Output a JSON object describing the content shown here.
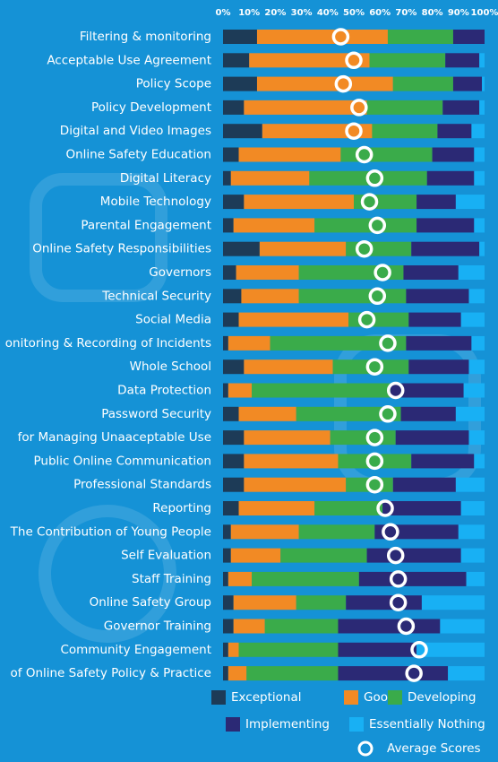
{
  "chart_data": {
    "type": "stacked-barh",
    "categories": [
      "Filtering & monitoring",
      "Acceptable Use Agreement",
      "Policy Scope",
      "Policy Development",
      "Digital and Video Images",
      "Online Safety Education",
      "Digital Literacy",
      "Mobile Technology",
      "Parental Engagement",
      "Online Safety Responsibilities",
      "Governors",
      "Technical Security",
      "Social Media",
      "onitoring & Recording of Incidents",
      "Whole School",
      "Data Protection",
      "Password Security",
      "for Managing Unaaceptable Use",
      "Public Online Communication",
      "Professional Standards",
      "Reporting",
      "The Contribution of Young People",
      "Self Evaluation",
      "Staff Training",
      "Online Safety Group",
      "Governor Training",
      "Community Engagement",
      "of Online Safety Policy & Practice"
    ],
    "series": [
      {
        "name": "Exceptional",
        "color": "#1d3b57",
        "values": [
          13,
          10,
          13,
          8,
          15,
          6,
          3,
          8,
          4,
          14,
          5,
          7,
          6,
          2,
          8,
          2,
          6,
          8,
          8,
          8,
          6,
          3,
          3,
          2,
          4,
          4,
          2,
          2
        ]
      },
      {
        "name": "Good",
        "color": "#f28a24",
        "values": [
          50,
          46,
          52,
          47,
          42,
          39,
          30,
          42,
          31,
          33,
          24,
          22,
          42,
          16,
          34,
          9,
          22,
          33,
          36,
          39,
          29,
          26,
          19,
          9,
          24,
          12,
          4,
          7
        ]
      },
      {
        "name": "Developing",
        "color": "#3aab4a",
        "values": [
          25,
          29,
          23,
          29,
          25,
          35,
          45,
          24,
          39,
          25,
          40,
          41,
          23,
          52,
          29,
          53,
          40,
          25,
          28,
          18,
          26,
          29,
          33,
          41,
          19,
          28,
          38,
          35
        ]
      },
      {
        "name": "Implementing",
        "color": "#2b2975",
        "values": [
          12,
          13,
          11,
          14,
          13,
          16,
          18,
          15,
          22,
          26,
          21,
          24,
          20,
          25,
          23,
          28,
          21,
          28,
          24,
          24,
          30,
          32,
          36,
          41,
          29,
          39,
          30,
          42
        ]
      },
      {
        "name": "Essentially Nothing",
        "color": "#18b0f4",
        "values": [
          0,
          2,
          1,
          2,
          5,
          4,
          4,
          11,
          4,
          2,
          10,
          6,
          9,
          5,
          6,
          8,
          11,
          6,
          4,
          11,
          9,
          10,
          9,
          7,
          24,
          17,
          26,
          14
        ]
      }
    ],
    "average": {
      "name": "Average Scores",
      "color": "#ffffff",
      "values": [
        45,
        50,
        46,
        52,
        50,
        54,
        58,
        56,
        59,
        54,
        61,
        59,
        55,
        63,
        58,
        66,
        63,
        58,
        58,
        58,
        62,
        64,
        66,
        67,
        67,
        70,
        75,
        73
      ]
    },
    "xlim": [
      0,
      100
    ],
    "xticks": [
      {
        "value": 0,
        "label": "0%"
      },
      {
        "value": 10,
        "label": "10%"
      },
      {
        "value": 20,
        "label": "20%"
      },
      {
        "value": 30,
        "label": "30%"
      },
      {
        "value": 40,
        "label": "40%"
      },
      {
        "value": 50,
        "label": "50%"
      },
      {
        "value": 60,
        "label": "60%"
      },
      {
        "value": 70,
        "label": "70%"
      },
      {
        "value": 80,
        "label": "80%"
      },
      {
        "value": 90,
        "label": "90%"
      },
      {
        "value": 100,
        "label": "100%"
      }
    ]
  }
}
